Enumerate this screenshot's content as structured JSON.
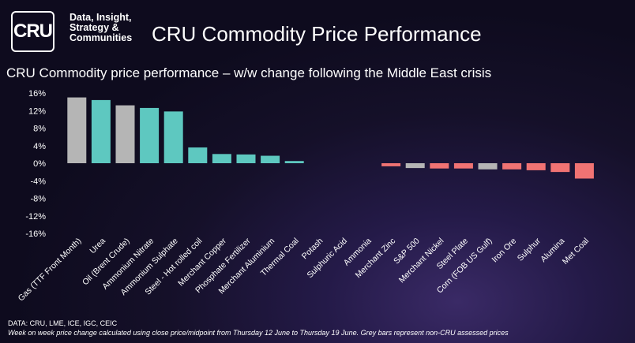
{
  "header": {
    "logo_text": "CRU",
    "tagline": "Data, Insight, Strategy & Communities",
    "title": "CRU Commodity Price Performance"
  },
  "colors": {
    "cru_assessed": "#5ec8c0",
    "non_cru_assessed": "#b5b5b5",
    "negative": "#f07373",
    "axis_text": "#ffffff"
  },
  "chart_data": {
    "type": "bar",
    "title": "CRU Commodity price performance – w/w change following the Middle East crisis",
    "xlabel": "",
    "ylabel": "",
    "ylim": [
      -16,
      16
    ],
    "yticks": [
      16,
      12,
      8,
      4,
      0,
      -4,
      -8,
      -12,
      -16
    ],
    "ytick_labels": [
      "16%",
      "12%",
      "8%",
      "4%",
      "0%",
      "-4%",
      "-8%",
      "-12%",
      "-16%"
    ],
    "grid": false,
    "legend": "none",
    "categories": [
      "Gas (TTF Front Month)",
      "Urea",
      "Oil (Brent Crude)",
      "Ammonium Nitrate",
      "Ammonium Sulphate",
      "Steel - Hot rolled coil",
      "Merchant Copper",
      "Phosphate Fertilizer",
      "Merchant Aluminium",
      "Thermal Coal",
      "Potash",
      "Sulphuric Acid",
      "Ammonia",
      "Merchant Zinc",
      "S&P 500",
      "Merchant Nickel",
      "Steel Plate",
      "Corn (FOB US Gulf)",
      "Iron Ore",
      "Sulphur",
      "Alumina",
      "Met Coal"
    ],
    "values": [
      15.0,
      14.4,
      13.2,
      12.6,
      11.8,
      3.6,
      2.1,
      2.0,
      1.7,
      0.5,
      0.0,
      0.0,
      0.0,
      -0.7,
      -1.1,
      -1.2,
      -1.2,
      -1.4,
      -1.4,
      -1.6,
      -2.0,
      -3.5
    ],
    "bar_group": [
      "non_cru",
      "cru",
      "non_cru",
      "cru",
      "cru",
      "cru",
      "cru",
      "cru",
      "cru",
      "cru",
      "cru",
      "cru",
      "cru",
      "cru",
      "non_cru",
      "cru",
      "cru",
      "non_cru",
      "cru",
      "cru",
      "cru",
      "cru"
    ]
  },
  "footer": {
    "source": "DATA: CRU, LME, ICE, IGC, CEIC",
    "note": "Week on week price change calculated using close price/midpoint from Thursday 12 June to Thursday 19 June. Grey bars represent non-CRU assessed prices"
  }
}
